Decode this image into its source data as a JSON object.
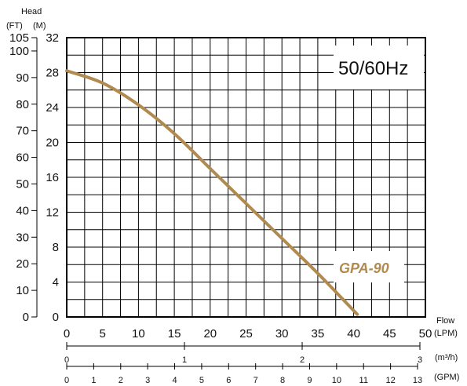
{
  "chart_data": {
    "type": "line",
    "title": "",
    "frequency_label": "50/60Hz",
    "model_label": "GPA-90",
    "header": {
      "head_label": "Head",
      "ft_unit": "(FT)",
      "m_unit": "(M)"
    },
    "x_label": "Flow",
    "x_units": {
      "lpm": "(LPM)",
      "m3h": "(m³/h)",
      "gpm": "(GPM)"
    },
    "y_left_ticks_ft": [
      "0",
      "10",
      "20",
      "30",
      "40",
      "50",
      "60",
      "70",
      "80",
      "90",
      "100",
      "105"
    ],
    "y_ticks_m": [
      "0",
      "4",
      "8",
      "12",
      "16",
      "20",
      "24",
      "28",
      "32"
    ],
    "x_ticks_lpm": [
      "0",
      "5",
      "10",
      "15",
      "20",
      "25",
      "30",
      "35",
      "40",
      "45",
      "50"
    ],
    "x_ticks_m3h": [
      "0",
      "1",
      "2",
      "3"
    ],
    "x_ticks_gpm": [
      "0",
      "1",
      "2",
      "3",
      "4",
      "5",
      "6",
      "7",
      "8",
      "9",
      "10",
      "11",
      "12",
      "13"
    ],
    "xlim": [
      0,
      50
    ],
    "ylim": [
      0,
      32
    ],
    "grid": true,
    "series": [
      {
        "name": "GPA-90",
        "color": "#b08a4e",
        "x": [
          0,
          5,
          10,
          15,
          20,
          25,
          30,
          35,
          40.5
        ],
        "y": [
          28.2,
          26.8,
          24.3,
          21.0,
          17.0,
          13.0,
          9.0,
          5.0,
          0.3
        ]
      }
    ]
  }
}
